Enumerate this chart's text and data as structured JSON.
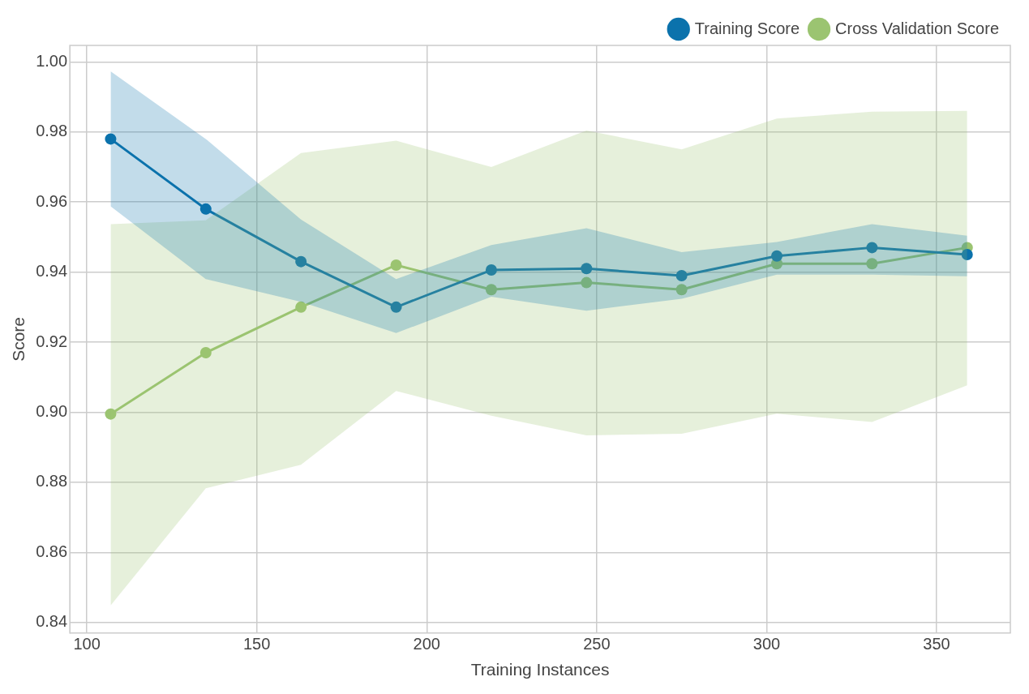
{
  "chart_data": {
    "type": "line",
    "xlabel": "Training Instances",
    "ylabel": "Score",
    "x": [
      107,
      135,
      163,
      191,
      219,
      247,
      275,
      303,
      331,
      359
    ],
    "series": [
      {
        "name": "Training Score",
        "color": "#0b72ac",
        "values": [
          0.978,
          0.958,
          0.943,
          0.93,
          0.9406,
          0.941,
          0.939,
          0.9446,
          0.947,
          0.945
        ],
        "lower": [
          0.9588,
          0.938,
          0.9315,
          0.9226,
          0.933,
          0.929,
          0.9324,
          0.9393,
          0.9393,
          0.9388
        ],
        "upper": [
          0.9973,
          0.978,
          0.955,
          0.938,
          0.9477,
          0.9525,
          0.9457,
          0.9486,
          0.9537,
          0.9504
        ]
      },
      {
        "name": "Cross Validation Score",
        "color": "#9bc471",
        "values": [
          0.8995,
          0.917,
          0.93,
          0.942,
          0.935,
          0.937,
          0.935,
          0.9424,
          0.9424,
          0.947
        ],
        "lower": [
          0.8449,
          0.8783,
          0.885,
          0.9061,
          0.899,
          0.8934,
          0.8939,
          0.8996,
          0.8972,
          0.9077
        ],
        "upper": [
          0.9537,
          0.9548,
          0.974,
          0.9775,
          0.97,
          0.9804,
          0.975,
          0.9838,
          0.9858,
          0.986
        ]
      }
    ],
    "xlim": [
      95,
      371.7
    ],
    "xticks": [
      100,
      150,
      200,
      250,
      300,
      350
    ],
    "ylim": [
      0.837,
      1.0047
    ],
    "yticks": [
      0.84,
      0.86,
      0.88,
      {
        "value": 0.9,
        "label": "0.90"
      },
      0.92,
      0.94,
      0.96,
      0.98,
      {
        "value": 1,
        "label": "1.00"
      }
    ],
    "grid": true,
    "legend": "top right",
    "marker": "circle",
    "line_style": "solid"
  }
}
